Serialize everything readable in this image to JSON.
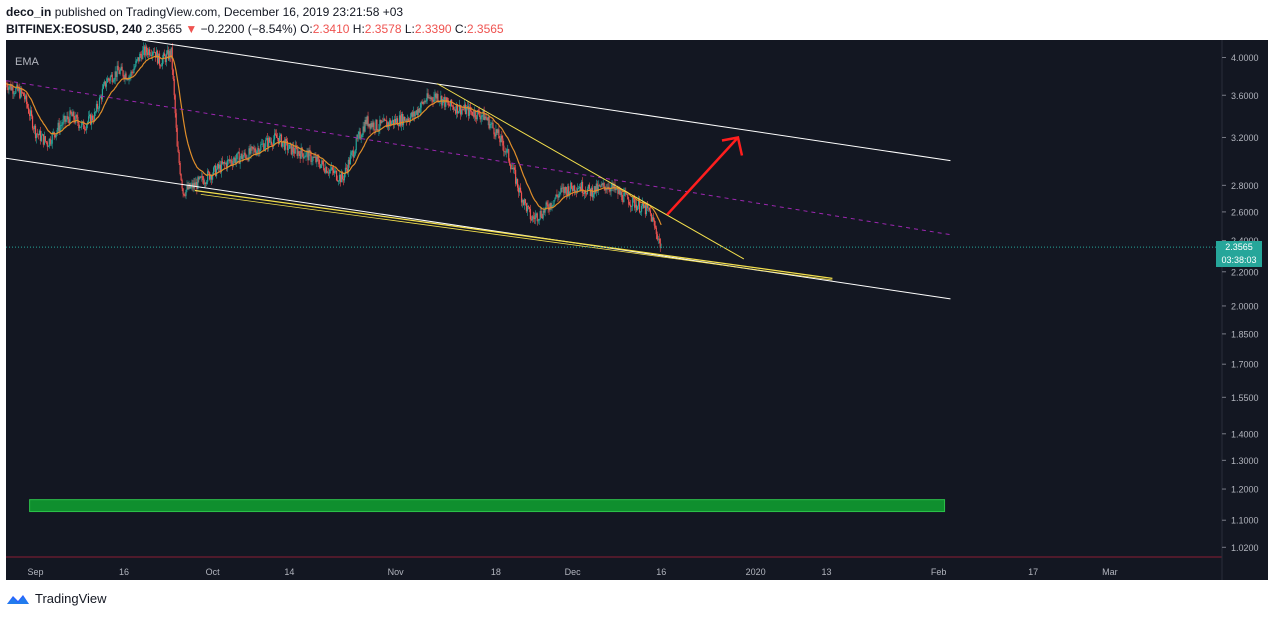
{
  "header": {
    "author": "deco_in",
    "published": "published on TradingView.com, December 16, 2019 23:21:58 +03",
    "symbol": "BITFINEX:EOSUSD, 240",
    "last": "2.3565",
    "change_arrow": "▼",
    "change": "−0.2200 (−8.54%)",
    "o_label": "O:",
    "o_value": "2.3410",
    "h_label": "H:",
    "h_value": "2.3578",
    "l_label": "L:",
    "l_value": "2.3390",
    "c_label": "C:",
    "c_value": "2.3565"
  },
  "indicator_label": "EMA",
  "price_tag": {
    "price": "2.3565",
    "countdown": "03:38:03"
  },
  "footer": {
    "brand": "TradingView",
    "logo_icon": "tradingview-logo-icon"
  },
  "colors": {
    "background": "#131722",
    "up": "#26a69a",
    "down": "#ef5350",
    "ema": "#e08e2a",
    "trendline": "#ffffff",
    "wedge": "#f4e04d",
    "midline": "#9c27b0",
    "arrow": "#ff1e1e",
    "zone": "#0f8f2e"
  },
  "chart_data": {
    "type": "candlestick",
    "title": "BITFINEX:EOSUSD, 240",
    "y_scale": "log",
    "ylim": [
      0.99,
      4.2
    ],
    "y_ticks": [
      "4.0000",
      "3.6000",
      "3.2000",
      "2.8000",
      "2.6000",
      "2.4000",
      "2.2000",
      "2.0000",
      "1.8500",
      "1.7000",
      "1.5500",
      "1.4000",
      "1.3000",
      "1.2000",
      "1.1000",
      "1.0200"
    ],
    "x_ticks": [
      "Sep",
      "16",
      "Oct",
      "14",
      "Nov",
      "18",
      "Dec",
      "16",
      "2020",
      "13",
      "Feb",
      "17",
      "Mar"
    ],
    "xlim": [
      "2019-08-27",
      "2020-03-20"
    ],
    "ohlc": [
      [
        "2019-08-27",
        3.72
      ],
      [
        "2019-08-30",
        3.6
      ],
      [
        "2019-09-01",
        3.25
      ],
      [
        "2019-09-03",
        3.15
      ],
      [
        "2019-09-05",
        3.3
      ],
      [
        "2019-09-07",
        3.4
      ],
      [
        "2019-09-09",
        3.3
      ],
      [
        "2019-09-11",
        3.4
      ],
      [
        "2019-09-13",
        3.75
      ],
      [
        "2019-09-15",
        3.85
      ],
      [
        "2019-09-17",
        3.8
      ],
      [
        "2019-09-19",
        4.05
      ],
      [
        "2019-09-21",
        4.1
      ],
      [
        "2019-09-22",
        3.95
      ],
      [
        "2019-09-24",
        4.05
      ],
      [
        "2019-09-25",
        3.1
      ],
      [
        "2019-09-26",
        2.75
      ],
      [
        "2019-09-28",
        2.8
      ],
      [
        "2019-10-01",
        2.9
      ],
      [
        "2019-10-04",
        3.0
      ],
      [
        "2019-10-07",
        3.05
      ],
      [
        "2019-10-10",
        3.15
      ],
      [
        "2019-10-12",
        3.2
      ],
      [
        "2019-10-14",
        3.1
      ],
      [
        "2019-10-17",
        3.05
      ],
      [
        "2019-10-20",
        2.95
      ],
      [
        "2019-10-23",
        2.85
      ],
      [
        "2019-10-25",
        3.1
      ],
      [
        "2019-10-27",
        3.35
      ],
      [
        "2019-10-29",
        3.3
      ],
      [
        "2019-11-01",
        3.35
      ],
      [
        "2019-11-04",
        3.4
      ],
      [
        "2019-11-06",
        3.55
      ],
      [
        "2019-11-08",
        3.6
      ],
      [
        "2019-11-10",
        3.5
      ],
      [
        "2019-11-13",
        3.45
      ],
      [
        "2019-11-16",
        3.4
      ],
      [
        "2019-11-18",
        3.25
      ],
      [
        "2019-11-20",
        3.05
      ],
      [
        "2019-11-22",
        2.75
      ],
      [
        "2019-11-24",
        2.55
      ],
      [
        "2019-11-26",
        2.6
      ],
      [
        "2019-11-29",
        2.75
      ],
      [
        "2019-12-02",
        2.8
      ],
      [
        "2019-12-04",
        2.75
      ],
      [
        "2019-12-07",
        2.8
      ],
      [
        "2019-12-10",
        2.7
      ],
      [
        "2019-12-12",
        2.65
      ],
      [
        "2019-12-14",
        2.6
      ],
      [
        "2019-12-16",
        2.3565
      ]
    ],
    "ema_period_label": "EMA",
    "zone": {
      "from": "2019-08-31",
      "to": "2020-02-02",
      "low": 1.127,
      "high": 1.165
    },
    "current_price": 2.3565
  }
}
